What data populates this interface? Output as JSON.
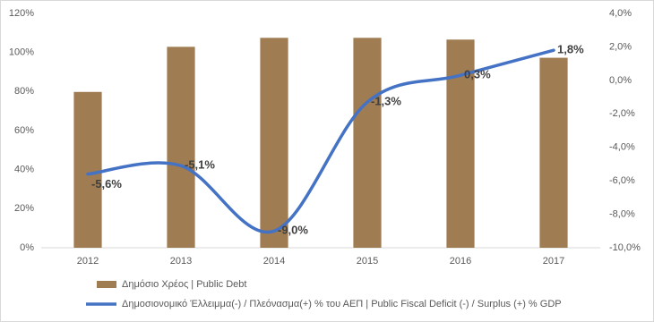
{
  "chart_data": {
    "type": "combo",
    "categories": [
      "2012",
      "2013",
      "2014",
      "2015",
      "2016",
      "2017"
    ],
    "series": [
      {
        "name": "Δημόσιο Χρέος | Public Debt",
        "type": "bar",
        "color": "#a07c52",
        "values": [
          79.8,
          102.9,
          107.5,
          107.5,
          106.6,
          97.3
        ]
      },
      {
        "name": "Δημοσιονομικό Έλλειμμα(-) / Πλεόνασμα(+) % του ΑΕΠ | Public Fiscal Deficit (-) / Surplus (+) % GDP",
        "type": "line",
        "axis": "y2",
        "color": "#4472c4",
        "values": [
          -5.6,
          -5.1,
          -9.0,
          -1.3,
          0.3,
          1.8
        ],
        "value_labels": [
          "-5,6%",
          "-5,1%",
          "-9,0%",
          "-1,3%",
          "0,3%",
          "1,8%"
        ]
      }
    ],
    "ylim": [
      0,
      120
    ],
    "yticks": [
      {
        "value": 0,
        "label": "0%"
      },
      {
        "value": 20,
        "label": "20%"
      },
      {
        "value": 40,
        "label": "40%"
      },
      {
        "value": 60,
        "label": "60%"
      },
      {
        "value": 80,
        "label": "80%"
      },
      {
        "value": 100,
        "label": "100%"
      },
      {
        "value": 120,
        "label": "120%"
      }
    ],
    "y2lim": [
      -10,
      4
    ],
    "y2ticks": [
      {
        "value": -10,
        "label": "-10,0%"
      },
      {
        "value": -8,
        "label": "-8,0%"
      },
      {
        "value": -6,
        "label": "-6,0%"
      },
      {
        "value": -4,
        "label": "-4,0%"
      },
      {
        "value": -2,
        "label": "-2,0%"
      },
      {
        "value": 0,
        "label": "0,0%"
      },
      {
        "value": 2,
        "label": "2,0%"
      },
      {
        "value": 4,
        "label": "4,0%"
      }
    ],
    "grid": false
  }
}
